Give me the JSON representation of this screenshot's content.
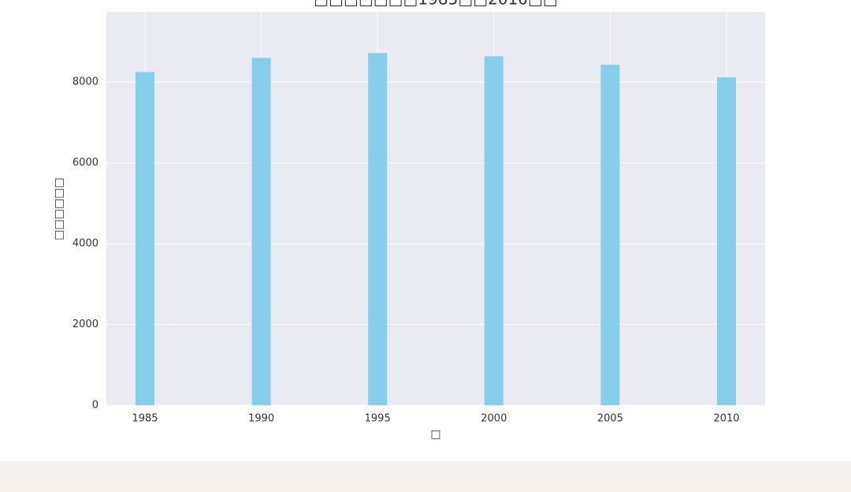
{
  "chart_data": {
    "type": "bar",
    "title": "□□□□□□□1985□□2010□□",
    "x_label": "□",
    "y_label": "□□□□□□",
    "x": [
      1985,
      1990,
      1995,
      2000,
      2005,
      2010
    ],
    "values": [
      8250,
      8600,
      8720,
      8640,
      8430,
      8120
    ],
    "color": "#87ceeb",
    "xlim": [
      1983.34,
      2011.66
    ],
    "xticks": [
      1985,
      1990,
      1995,
      2000,
      2005,
      2010
    ],
    "ylim": [
      0,
      9740
    ],
    "yticks": [
      0,
      2000,
      4000,
      6000,
      8000
    ],
    "grid": true
  }
}
